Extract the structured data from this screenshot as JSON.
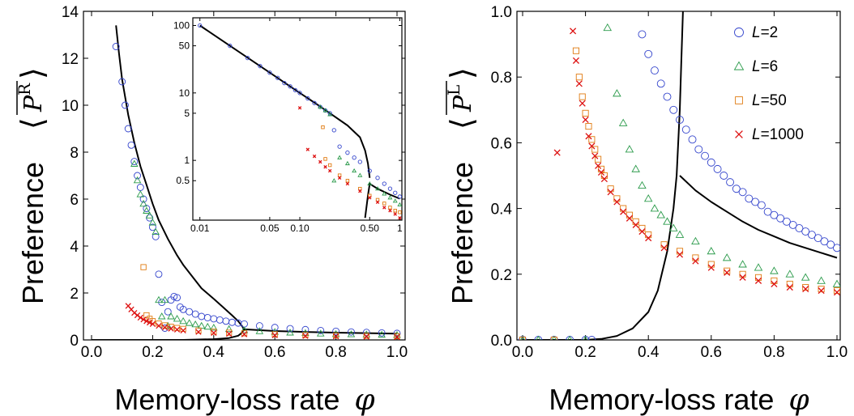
{
  "chart_data": [
    {
      "type": "scatter",
      "panel": "left",
      "xlabel_text": "Memory-loss rate",
      "xlabel_symbol": "φ",
      "ylabel_text": "Preference",
      "ylabel_symbol": "P",
      "ylabel_superscript": "R",
      "xlim": [
        0.0,
        1.0
      ],
      "ylim": [
        0,
        14
      ],
      "x_ticks": [
        "0.0",
        "0.2",
        "0.4",
        "0.6",
        "0.8",
        "1.0"
      ],
      "y_ticks": [
        "0",
        "2",
        "4",
        "6",
        "8",
        "10",
        "12",
        "14"
      ],
      "grid": false,
      "series": [
        {
          "name": "L=2",
          "marker": "circle",
          "color": "#3344cc",
          "x": [
            0.08,
            0.1,
            0.11,
            0.12,
            0.13,
            0.14,
            0.15,
            0.16,
            0.17,
            0.18,
            0.19,
            0.2,
            0.21,
            0.22,
            0.23,
            0.24,
            0.25,
            0.26,
            0.27,
            0.28,
            0.29,
            0.3,
            0.32,
            0.34,
            0.36,
            0.38,
            0.4,
            0.42,
            0.44,
            0.46,
            0.48,
            0.5,
            0.55,
            0.6,
            0.65,
            0.7,
            0.75,
            0.8,
            0.85,
            0.9,
            0.95,
            1.0
          ],
          "y": [
            12.5,
            11.0,
            10.0,
            9.0,
            8.3,
            7.6,
            7.0,
            6.5,
            6.0,
            5.6,
            5.2,
            4.8,
            4.4,
            2.8,
            1.6,
            0.5,
            1.2,
            1.7,
            1.85,
            1.8,
            1.4,
            1.3,
            1.2,
            1.1,
            1.0,
            0.95,
            0.9,
            0.85,
            0.8,
            0.75,
            0.72,
            0.68,
            0.6,
            0.53,
            0.48,
            0.44,
            0.4,
            0.37,
            0.34,
            0.32,
            0.3,
            0.28
          ]
        },
        {
          "name": "L=6",
          "marker": "triangle",
          "color": "#2a9a4a",
          "x": [
            0.14,
            0.15,
            0.16,
            0.17,
            0.18,
            0.19,
            0.2,
            0.21,
            0.22,
            0.23,
            0.24,
            0.25,
            0.26,
            0.28,
            0.3,
            0.32,
            0.34,
            0.36,
            0.38,
            0.4,
            0.45,
            0.5,
            0.55,
            0.6,
            0.65,
            0.7,
            0.75,
            0.8,
            0.85,
            0.9,
            0.95,
            1.0
          ],
          "y": [
            7.5,
            6.8,
            6.2,
            5.8,
            5.5,
            5.3,
            5.0,
            4.6,
            1.7,
            1.0,
            1.7,
            0.6,
            1.0,
            0.9,
            0.8,
            0.72,
            0.66,
            0.6,
            0.56,
            0.52,
            0.46,
            0.41,
            0.37,
            0.34,
            0.31,
            0.29,
            0.27,
            0.25,
            0.24,
            0.23,
            0.22,
            0.21
          ]
        },
        {
          "name": "L=50",
          "marker": "square",
          "color": "#e07a10",
          "x": [
            0.17,
            0.18,
            0.19,
            0.2,
            0.22,
            0.24,
            0.26,
            0.28,
            0.3,
            0.35,
            0.4,
            0.45,
            0.5,
            0.6,
            0.7,
            0.8,
            0.9,
            1.0
          ],
          "y": [
            3.1,
            1.05,
            0.9,
            0.8,
            0.7,
            0.62,
            0.56,
            0.51,
            0.47,
            0.4,
            0.35,
            0.31,
            0.28,
            0.24,
            0.21,
            0.19,
            0.17,
            0.16
          ]
        },
        {
          "name": "L=1000",
          "marker": "cross",
          "color": "#dd1111",
          "x": [
            0.12,
            0.13,
            0.14,
            0.15,
            0.16,
            0.17,
            0.18,
            0.19,
            0.2,
            0.22,
            0.24,
            0.26,
            0.28,
            0.3,
            0.35,
            0.4,
            0.45,
            0.5,
            0.6,
            0.7,
            0.8,
            0.9,
            1.0
          ],
          "y": [
            1.45,
            1.3,
            1.15,
            1.05,
            0.95,
            0.87,
            0.8,
            0.74,
            0.68,
            0.6,
            0.53,
            0.48,
            0.44,
            0.4,
            0.34,
            0.3,
            0.26,
            0.24,
            0.2,
            0.17,
            0.15,
            0.14,
            0.12
          ]
        }
      ],
      "curves": [
        {
          "name": "theory-upper",
          "color": "#000000",
          "x": [
            0.08,
            0.09,
            0.1,
            0.12,
            0.14,
            0.16,
            0.18,
            0.2,
            0.22,
            0.25,
            0.28,
            0.3,
            0.33,
            0.36,
            0.4,
            0.43,
            0.46,
            0.48,
            0.495,
            0.5
          ],
          "y": [
            13.4,
            12.2,
            11.1,
            9.6,
            8.4,
            7.4,
            6.6,
            5.8,
            5.1,
            4.3,
            3.6,
            3.2,
            2.7,
            2.2,
            1.75,
            1.4,
            1.05,
            0.8,
            0.55,
            0.4
          ]
        },
        {
          "name": "theory-lower",
          "color": "#000000",
          "x": [
            0.0,
            0.3,
            0.4,
            0.45,
            0.48,
            0.49,
            0.5,
            0.6,
            0.7,
            0.8,
            0.9,
            1.0
          ],
          "y": [
            0.0,
            0.0,
            0.03,
            0.08,
            0.18,
            0.28,
            0.45,
            0.38,
            0.34,
            0.31,
            0.29,
            0.27
          ]
        }
      ],
      "inset": {
        "x_scale": "log",
        "y_scale": "log",
        "xlim": [
          0.0085,
          1.05
        ],
        "ylim": [
          0.13,
          130
        ],
        "x_ticks": [
          "0.01",
          "0.05",
          "0.10",
          "0.50",
          "1"
        ],
        "y_ticks": [
          "100",
          "50",
          "10",
          "5",
          "1",
          "0.5"
        ],
        "curves": [
          {
            "name": "theory-upper",
            "color": "#000000",
            "x": [
              0.01,
              0.02,
              0.05,
              0.1,
              0.15,
              0.2,
              0.3,
              0.4,
              0.45,
              0.48,
              0.5
            ],
            "y": [
              100,
              50,
              20,
              10,
              6.7,
              5.0,
              3.3,
              2.2,
              1.4,
              0.9,
              0.55
            ]
          },
          {
            "name": "theory-lower",
            "color": "#000000",
            "x": [
              0.45,
              0.48,
              0.5,
              0.6,
              0.8,
              1.0
            ],
            "y": [
              0.14,
              0.3,
              0.45,
              0.38,
              0.31,
              0.27
            ]
          }
        ],
        "series": [
          {
            "name": "L=2",
            "marker": "circle",
            "color": "#3344cc",
            "x": [
              0.01,
              0.02,
              0.03,
              0.04,
              0.05,
              0.06,
              0.07,
              0.08,
              0.09,
              0.1,
              0.12,
              0.14,
              0.16,
              0.18,
              0.2,
              0.22,
              0.25,
              0.3,
              0.35,
              0.4,
              0.5,
              0.6,
              0.7,
              0.8,
              0.9,
              1.0
            ],
            "y": [
              100,
              50,
              33,
              25,
              20,
              16.7,
              14,
              12.5,
              11,
              10,
              8.3,
              7.1,
              6.2,
              5.5,
              5.0,
              2.8,
              1.6,
              1.3,
              1.1,
              0.95,
              0.7,
              0.55,
              0.45,
              0.38,
              0.33,
              0.29
            ]
          },
          {
            "name": "L=6",
            "marker": "triangle",
            "color": "#2a9a4a",
            "x": [
              0.16,
              0.18,
              0.2,
              0.22,
              0.25,
              0.3,
              0.35,
              0.4,
              0.5,
              0.6,
              0.7,
              0.8,
              0.9,
              1.0
            ],
            "y": [
              6.2,
              5.5,
              4.8,
              0.5,
              1.1,
              0.9,
              0.7,
              0.6,
              0.45,
              0.38,
              0.32,
              0.28,
              0.25,
              0.22
            ]
          },
          {
            "name": "L=50",
            "marker": "square",
            "color": "#e07a10",
            "x": [
              0.17,
              0.18,
              0.2,
              0.25,
              0.3,
              0.4,
              0.5,
              0.6,
              0.7,
              0.8,
              0.9,
              1.0
            ],
            "y": [
              3.1,
              1.05,
              0.85,
              0.6,
              0.5,
              0.38,
              0.3,
              0.26,
              0.23,
              0.2,
              0.18,
              0.17
            ]
          },
          {
            "name": "L=1000",
            "marker": "cross",
            "color": "#dd1111",
            "x": [
              0.1,
              0.12,
              0.14,
              0.16,
              0.18,
              0.2,
              0.25,
              0.3,
              0.4,
              0.5,
              0.6,
              0.7,
              0.8,
              0.9,
              1.0
            ],
            "y": [
              6.0,
              1.45,
              1.15,
              0.95,
              0.8,
              0.7,
              0.55,
              0.45,
              0.35,
              0.28,
              0.24,
              0.2,
              0.18,
              0.16,
              0.14
            ]
          }
        ]
      }
    },
    {
      "type": "scatter",
      "panel": "right",
      "xlabel_text": "Memory-loss rate",
      "xlabel_symbol": "φ",
      "ylabel_text": "Preference",
      "ylabel_symbol": "P",
      "ylabel_superscript": "L",
      "xlim": [
        0.0,
        1.0
      ],
      "ylim": [
        0.0,
        1.0
      ],
      "x_ticks": [
        "0.0",
        "0.2",
        "0.4",
        "0.6",
        "0.8",
        "1.0"
      ],
      "y_ticks": [
        "0.0",
        "0.2",
        "0.4",
        "0.6",
        "0.8",
        "1.0"
      ],
      "grid": false,
      "legend_placement": "top-right",
      "legend": [
        {
          "name": "L",
          "value": "=2",
          "marker": "circle",
          "color": "#3344cc"
        },
        {
          "name": "L",
          "value": "=6",
          "marker": "triangle",
          "color": "#2a9a4a"
        },
        {
          "name": "L",
          "value": "=50",
          "marker": "square",
          "color": "#e07a10"
        },
        {
          "name": "L",
          "value": "=1000",
          "marker": "cross",
          "color": "#dd1111"
        }
      ],
      "series": [
        {
          "name": "L=2",
          "marker": "circle",
          "color": "#3344cc",
          "x": [
            0.0,
            0.05,
            0.1,
            0.15,
            0.2,
            0.22,
            0.38,
            0.4,
            0.42,
            0.44,
            0.46,
            0.48,
            0.5,
            0.52,
            0.54,
            0.56,
            0.58,
            0.6,
            0.62,
            0.64,
            0.66,
            0.68,
            0.7,
            0.72,
            0.74,
            0.76,
            0.78,
            0.8,
            0.82,
            0.84,
            0.86,
            0.88,
            0.9,
            0.92,
            0.94,
            0.96,
            0.98,
            1.0
          ],
          "y": [
            0.0,
            0.0,
            0.0,
            0.0,
            0.0,
            0.0,
            0.93,
            0.87,
            0.82,
            0.78,
            0.74,
            0.7,
            0.67,
            0.64,
            0.61,
            0.58,
            0.56,
            0.54,
            0.52,
            0.5,
            0.48,
            0.46,
            0.45,
            0.43,
            0.42,
            0.41,
            0.39,
            0.38,
            0.37,
            0.36,
            0.35,
            0.34,
            0.33,
            0.32,
            0.31,
            0.3,
            0.29,
            0.28
          ]
        },
        {
          "name": "L=6",
          "marker": "triangle",
          "color": "#2a9a4a",
          "x": [
            0.0,
            0.05,
            0.1,
            0.15,
            0.2,
            0.27,
            0.3,
            0.32,
            0.34,
            0.36,
            0.38,
            0.4,
            0.42,
            0.44,
            0.46,
            0.48,
            0.5,
            0.55,
            0.6,
            0.65,
            0.7,
            0.75,
            0.8,
            0.85,
            0.9,
            0.95,
            1.0
          ],
          "y": [
            0.0,
            0.0,
            0.0,
            0.0,
            0.0,
            0.95,
            0.75,
            0.66,
            0.58,
            0.52,
            0.47,
            0.43,
            0.4,
            0.38,
            0.36,
            0.34,
            0.32,
            0.3,
            0.27,
            0.25,
            0.23,
            0.22,
            0.21,
            0.2,
            0.19,
            0.18,
            0.17
          ]
        },
        {
          "name": "L=50",
          "marker": "square",
          "color": "#e07a10",
          "x": [
            0.0,
            0.1,
            0.17,
            0.18,
            0.19,
            0.2,
            0.21,
            0.22,
            0.23,
            0.24,
            0.25,
            0.26,
            0.28,
            0.3,
            0.32,
            0.34,
            0.36,
            0.38,
            0.4,
            0.45,
            0.5,
            0.55,
            0.6,
            0.65,
            0.7,
            0.75,
            0.8,
            0.85,
            0.9,
            0.95,
            1.0
          ],
          "y": [
            0.0,
            0.0,
            0.88,
            0.8,
            0.74,
            0.69,
            0.65,
            0.61,
            0.58,
            0.55,
            0.52,
            0.5,
            0.46,
            0.43,
            0.4,
            0.38,
            0.36,
            0.34,
            0.32,
            0.29,
            0.27,
            0.25,
            0.23,
            0.21,
            0.2,
            0.19,
            0.18,
            0.17,
            0.16,
            0.155,
            0.15
          ]
        },
        {
          "name": "L=1000",
          "marker": "cross",
          "color": "#dd1111",
          "x": [
            0.11,
            0.16,
            0.17,
            0.18,
            0.19,
            0.2,
            0.21,
            0.22,
            0.23,
            0.24,
            0.25,
            0.26,
            0.28,
            0.3,
            0.32,
            0.34,
            0.36,
            0.38,
            0.4,
            0.45,
            0.5,
            0.55,
            0.6,
            0.65,
            0.7,
            0.75,
            0.8,
            0.85,
            0.9,
            0.95,
            1.0
          ],
          "y": [
            0.57,
            0.94,
            0.85,
            0.78,
            0.72,
            0.67,
            0.62,
            0.59,
            0.56,
            0.53,
            0.51,
            0.49,
            0.45,
            0.42,
            0.39,
            0.37,
            0.35,
            0.33,
            0.31,
            0.28,
            0.26,
            0.24,
            0.22,
            0.205,
            0.19,
            0.18,
            0.17,
            0.16,
            0.155,
            0.15,
            0.145
          ]
        }
      ],
      "curves": [
        {
          "name": "theory-rising",
          "color": "#000000",
          "x": [
            0.0,
            0.2,
            0.25,
            0.3,
            0.35,
            0.4,
            0.43,
            0.46,
            0.48,
            0.49,
            0.5,
            0.505,
            0.51
          ],
          "y": [
            0.0,
            0.0,
            0.003,
            0.012,
            0.035,
            0.085,
            0.15,
            0.27,
            0.4,
            0.5,
            0.7,
            0.85,
            1.0
          ]
        },
        {
          "name": "theory-falling",
          "color": "#000000",
          "x": [
            0.5,
            0.55,
            0.6,
            0.65,
            0.7,
            0.75,
            0.8,
            0.85,
            0.9,
            0.95,
            1.0
          ],
          "y": [
            0.5,
            0.455,
            0.42,
            0.39,
            0.36,
            0.335,
            0.315,
            0.295,
            0.28,
            0.265,
            0.25
          ]
        }
      ]
    }
  ]
}
